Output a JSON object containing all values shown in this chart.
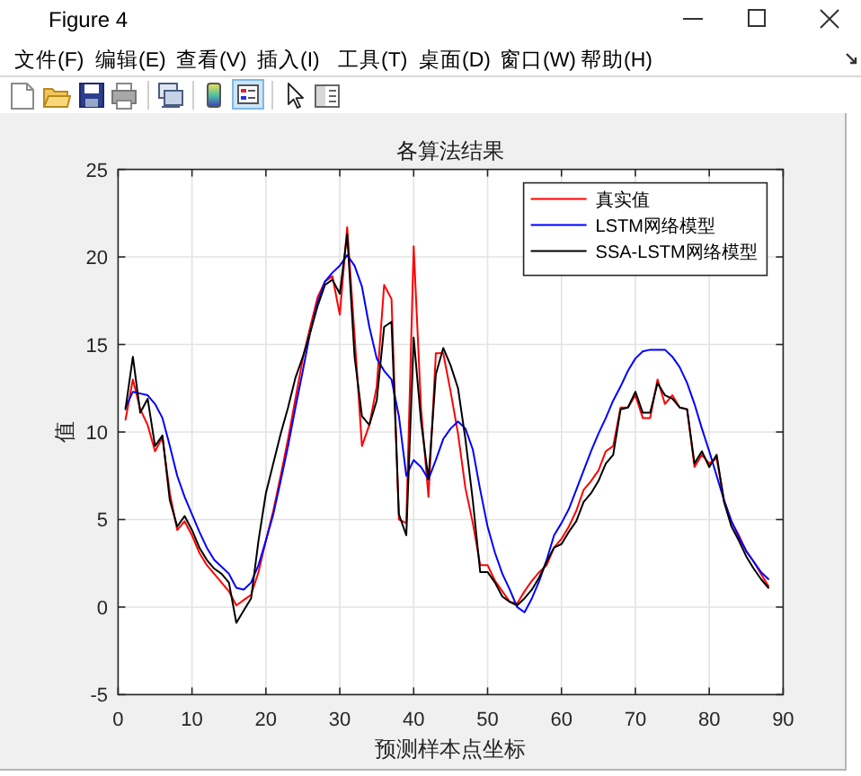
{
  "chart_data": {
    "type": "line",
    "title": "各算法结果",
    "xlabel": "预测样本点坐标",
    "ylabel": "值",
    "annotations": [
      "Figure 4",
      "文件(F)",
      "编辑(E)",
      "查看(V)",
      "插入(I)",
      "工具(T)",
      "桌面(D)",
      "窗口(W)",
      "帮助(H)"
    ],
    "x": [
      1,
      2,
      3,
      4,
      5,
      6,
      7,
      8,
      9,
      10,
      11,
      12,
      13,
      14,
      15,
      16,
      17,
      18,
      19,
      20,
      21,
      22,
      23,
      24,
      25,
      26,
      27,
      28,
      29,
      30,
      31,
      32,
      33,
      34,
      35,
      36,
      37,
      38,
      39,
      40,
      41,
      42,
      43,
      44,
      45,
      46,
      47,
      48,
      49,
      50,
      51,
      52,
      53,
      54,
      55,
      56,
      57,
      58,
      59,
      60,
      61,
      62,
      63,
      64,
      65,
      66,
      67,
      68,
      69,
      70,
      71,
      72,
      73,
      74,
      75,
      76,
      77,
      78,
      79,
      80,
      81,
      82,
      83,
      84,
      85,
      86,
      87,
      88
    ],
    "series": [
      {
        "name": "真实值",
        "color": "#ff0000",
        "values": [
          10.7,
          13.0,
          11.3,
          10.4,
          8.9,
          9.7,
          6.5,
          4.4,
          4.9,
          4.1,
          3.1,
          2.4,
          1.9,
          1.4,
          0.9,
          0.1,
          0.4,
          0.7,
          2.0,
          3.8,
          5.5,
          7.5,
          9.6,
          11.9,
          14.2,
          16.0,
          17.7,
          18.6,
          18.9,
          16.7,
          21.7,
          15.5,
          9.2,
          10.4,
          12.6,
          18.4,
          17.6,
          5.0,
          4.8,
          20.6,
          11.3,
          6.3,
          14.5,
          14.5,
          12.3,
          9.9,
          6.8,
          4.8,
          2.4,
          2.4,
          1.5,
          0.9,
          0.3,
          0.2,
          0.9,
          1.5,
          2.0,
          2.4,
          3.4,
          3.9,
          4.6,
          5.5,
          6.7,
          7.2,
          7.8,
          8.9,
          9.2,
          11.4,
          11.4,
          12.1,
          10.8,
          10.8,
          13.0,
          11.6,
          12.1,
          11.4,
          11.3,
          8.0,
          8.7,
          8.2,
          8.5,
          6.1,
          4.9,
          4.1,
          3.2,
          2.6,
          1.9,
          1.2
        ]
      },
      {
        "name": "LSTM网络模型",
        "color": "#0000ff",
        "values": [
          11.4,
          12.3,
          12.2,
          12.1,
          11.6,
          10.8,
          9.2,
          7.5,
          6.3,
          5.3,
          4.3,
          3.4,
          2.7,
          2.3,
          1.9,
          1.1,
          1.0,
          1.4,
          2.4,
          3.8,
          5.3,
          7.2,
          9.2,
          11.4,
          13.5,
          15.7,
          17.4,
          18.6,
          19.1,
          19.5,
          20.1,
          19.5,
          18.3,
          16.0,
          14.2,
          13.5,
          13.0,
          10.9,
          7.5,
          8.4,
          8.0,
          7.3,
          8.4,
          9.6,
          10.2,
          10.6,
          10.2,
          9.0,
          6.7,
          4.6,
          3.1,
          1.9,
          1.0,
          0.0,
          -0.3,
          0.5,
          1.5,
          2.7,
          4.1,
          4.8,
          5.6,
          6.7,
          7.8,
          8.9,
          9.9,
          10.8,
          11.8,
          12.6,
          13.5,
          14.2,
          14.6,
          14.7,
          14.7,
          14.7,
          14.3,
          13.7,
          12.8,
          11.6,
          10.2,
          8.9,
          7.5,
          6.1,
          4.9,
          4.0,
          3.2,
          2.6,
          2.0,
          1.6
        ]
      },
      {
        "name": "SSA-LSTM网络模型",
        "color": "#000000",
        "values": [
          11.3,
          14.3,
          11.1,
          11.9,
          9.2,
          9.8,
          6.1,
          4.6,
          5.2,
          4.4,
          3.4,
          2.7,
          2.2,
          1.9,
          1.4,
          -0.9,
          -0.2,
          0.5,
          3.8,
          6.5,
          8.2,
          9.9,
          11.4,
          13.1,
          14.3,
          15.7,
          17.2,
          18.4,
          18.7,
          17.9,
          21.3,
          14.3,
          10.9,
          10.4,
          11.8,
          16.0,
          16.3,
          5.3,
          4.1,
          15.4,
          10.6,
          7.3,
          13.3,
          14.8,
          13.8,
          12.5,
          9.6,
          6.1,
          2.0,
          2.0,
          1.4,
          0.6,
          0.3,
          0.1,
          0.5,
          1.0,
          1.7,
          2.6,
          3.4,
          3.6,
          4.3,
          4.9,
          6.0,
          6.5,
          7.2,
          8.2,
          8.7,
          11.3,
          11.4,
          12.3,
          11.1,
          11.1,
          12.8,
          12.1,
          11.9,
          11.4,
          11.3,
          8.2,
          8.9,
          8.0,
          8.7,
          6.0,
          4.6,
          3.8,
          2.9,
          2.2,
          1.6,
          1.1
        ]
      }
    ],
    "xlim": [
      0,
      90
    ],
    "xticks": [
      0,
      10,
      20,
      30,
      40,
      50,
      60,
      70,
      80,
      90
    ],
    "ylim": [
      -5,
      25
    ],
    "yticks": [
      -5,
      0,
      5,
      10,
      15,
      20,
      25
    ],
    "grid": true,
    "legend": "top right"
  }
}
